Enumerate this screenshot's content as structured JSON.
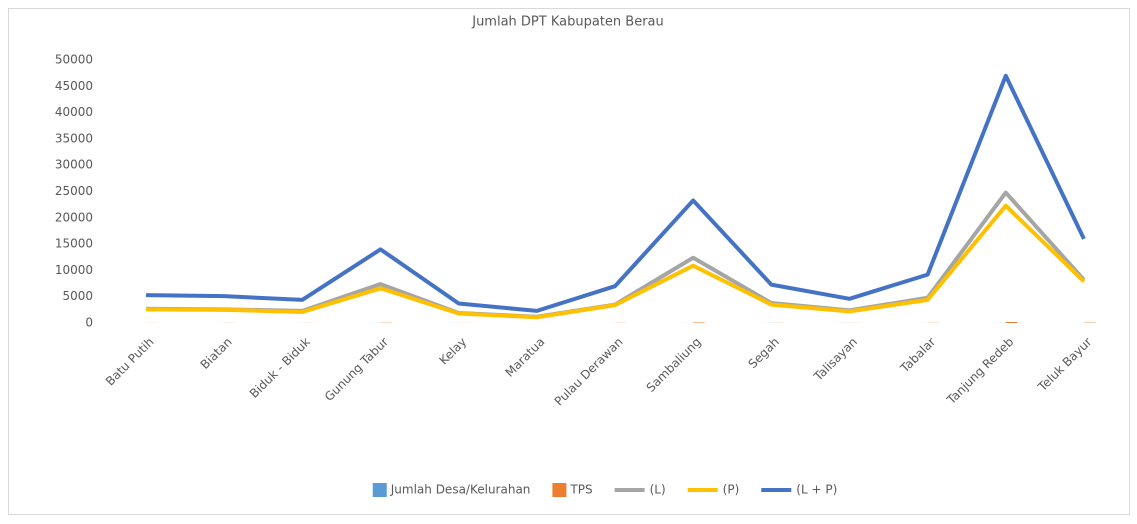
{
  "chart_data": {
    "type": "bar_line",
    "title": "Jumlah DPT Kabupaten Berau",
    "categories": [
      "Batu Putih",
      "Biatan",
      "Biduk - Biduk",
      "Gunung Tabur",
      "Kelay",
      "Maratua",
      "Pulau Derawan",
      "Sambaliung",
      "Segah",
      "Talisayan",
      "Tabalar",
      "Tanjung Redeb",
      "Teluk Bayur"
    ],
    "series": [
      {
        "name": "Jumlah Desa/Kelurahan",
        "type": "bar",
        "color": "#5b9bd5",
        "values": [
          4,
          5,
          6,
          11,
          14,
          4,
          5,
          14,
          11,
          18,
          6,
          10,
          6
        ]
      },
      {
        "name": "TPS",
        "type": "bar",
        "color": "#ed7d31",
        "values": [
          20,
          21,
          18,
          55,
          17,
          10,
          28,
          95,
          30,
          20,
          37,
          190,
          65
        ]
      },
      {
        "name": "(L)",
        "type": "line",
        "color": "#a5a5a5",
        "values": [
          2700,
          2600,
          2300,
          7400,
          1900,
          1200,
          3500,
          12400,
          3800,
          2400,
          4800,
          24800,
          8200
        ]
      },
      {
        "name": "(P)",
        "type": "line",
        "color": "#ffc000",
        "values": [
          2600,
          2500,
          2100,
          6600,
          1800,
          1100,
          3400,
          10900,
          3500,
          2200,
          4400,
          22300,
          7900
        ]
      },
      {
        "name": "(L + P)",
        "type": "line",
        "color": "#4472c4",
        "values": [
          5300,
          5100,
          4400,
          14000,
          3700,
          2300,
          7000,
          23300,
          7300,
          4600,
          9200,
          47000,
          16000
        ]
      }
    ],
    "ylim": [
      0,
      50000
    ],
    "yticks": [
      0,
      5000,
      10000,
      15000,
      20000,
      25000,
      30000,
      35000,
      40000,
      45000,
      50000
    ],
    "grid": false,
    "legend": "bottom"
  }
}
